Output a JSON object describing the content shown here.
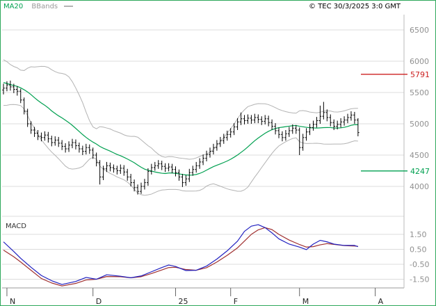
{
  "legend": {
    "ma20": "MA20",
    "bbands": "BBands"
  },
  "header": {
    "copyright": "© TEC 30/3/2025 3:0 GMT"
  },
  "colors": {
    "green": "#00a050",
    "band": "#b3b3b3",
    "grid": "#dcdcdc",
    "bar": "#000000",
    "macd_line": "#2020c0",
    "macd_signal": "#a03030",
    "axis_text": "#909090",
    "frame": "#2ea85a",
    "separator": "#999999",
    "month_text": "#222222"
  },
  "chart_data": {
    "type": "bar",
    "subtype": "ohlc-bars-with-bollinger-ma20-macd",
    "title": "",
    "price_axis": {
      "ticks": [
        6500,
        6000,
        5500,
        5000,
        4500,
        4000
      ],
      "range": [
        3700,
        6800
      ]
    },
    "levels": [
      {
        "label": "5791",
        "value": 5791,
        "color": "#cc2020"
      },
      {
        "label": "4247",
        "value": 4247,
        "color": "#00a050"
      }
    ],
    "x_axis": {
      "months": [
        {
          "label": "N",
          "i": 1
        },
        {
          "label": "D",
          "i": 26
        },
        {
          "label": "25",
          "i": 50
        },
        {
          "label": "F",
          "i": 66
        },
        {
          "label": "M",
          "i": 86
        },
        {
          "label": "A",
          "i": 108
        }
      ]
    },
    "warmup_closes": [
      5900,
      5950,
      5850,
      5780,
      5870,
      5800,
      5700,
      5760,
      5820,
      5700,
      5600,
      5520,
      5600,
      5680,
      5540,
      5460,
      5300,
      5350,
      5420
    ],
    "candles": [
      [
        5540,
        5640,
        5470,
        5570
      ],
      [
        5570,
        5680,
        5520,
        5620
      ],
      [
        5620,
        5690,
        5530,
        5590
      ],
      [
        5590,
        5640,
        5490,
        5550
      ],
      [
        5550,
        5600,
        5450,
        5520
      ],
      [
        5520,
        5560,
        5330,
        5380
      ],
      [
        5380,
        5420,
        5150,
        5200
      ],
      [
        5200,
        5240,
        4950,
        5000
      ],
      [
        5000,
        5040,
        4840,
        4900
      ],
      [
        4900,
        4950,
        4790,
        4850
      ],
      [
        4850,
        4900,
        4740,
        4800
      ],
      [
        4800,
        4860,
        4720,
        4780
      ],
      [
        4780,
        4880,
        4730,
        4820
      ],
      [
        4820,
        4870,
        4700,
        4760
      ],
      [
        4760,
        4810,
        4640,
        4700
      ],
      [
        4700,
        4800,
        4650,
        4740
      ],
      [
        4740,
        4790,
        4630,
        4690
      ],
      [
        4690,
        4740,
        4580,
        4640
      ],
      [
        4640,
        4690,
        4540,
        4600
      ],
      [
        4600,
        4720,
        4550,
        4660
      ],
      [
        4660,
        4760,
        4610,
        4700
      ],
      [
        4700,
        4750,
        4590,
        4650
      ],
      [
        4650,
        4700,
        4540,
        4600
      ],
      [
        4600,
        4650,
        4500,
        4560
      ],
      [
        4560,
        4680,
        4510,
        4620
      ],
      [
        4620,
        4670,
        4520,
        4580
      ],
      [
        4580,
        4620,
        4440,
        4500
      ],
      [
        4500,
        4540,
        4320,
        4380
      ],
      [
        4380,
        4420,
        4030,
        4150
      ],
      [
        4150,
        4330,
        4100,
        4280
      ],
      [
        4280,
        4390,
        4230,
        4330
      ],
      [
        4330,
        4380,
        4240,
        4300
      ],
      [
        4300,
        4350,
        4220,
        4280
      ],
      [
        4280,
        4330,
        4190,
        4250
      ],
      [
        4250,
        4350,
        4200,
        4290
      ],
      [
        4290,
        4340,
        4170,
        4230
      ],
      [
        4230,
        4280,
        4090,
        4150
      ],
      [
        4150,
        4200,
        4000,
        4060
      ],
      [
        4060,
        4110,
        3920,
        3980
      ],
      [
        3980,
        4030,
        3870,
        3920
      ],
      [
        3920,
        4060,
        3880,
        4000
      ],
      [
        4000,
        4120,
        3950,
        4060
      ],
      [
        4060,
        4290,
        4010,
        4240
      ],
      [
        4240,
        4360,
        4190,
        4300
      ],
      [
        4300,
        4390,
        4250,
        4330
      ],
      [
        4330,
        4420,
        4280,
        4360
      ],
      [
        4360,
        4410,
        4260,
        4320
      ],
      [
        4320,
        4370,
        4230,
        4290
      ],
      [
        4290,
        4370,
        4240,
        4310
      ],
      [
        4310,
        4360,
        4210,
        4270
      ],
      [
        4270,
        4320,
        4160,
        4220
      ],
      [
        4220,
        4270,
        4090,
        4150
      ],
      [
        4150,
        4200,
        3990,
        4060
      ],
      [
        4060,
        4180,
        4010,
        4120
      ],
      [
        4120,
        4280,
        4070,
        4220
      ],
      [
        4220,
        4330,
        4170,
        4270
      ],
      [
        4270,
        4390,
        4220,
        4330
      ],
      [
        4330,
        4450,
        4280,
        4390
      ],
      [
        4390,
        4510,
        4340,
        4450
      ],
      [
        4450,
        4570,
        4400,
        4510
      ],
      [
        4510,
        4620,
        4460,
        4560
      ],
      [
        4560,
        4680,
        4510,
        4620
      ],
      [
        4620,
        4740,
        4570,
        4680
      ],
      [
        4680,
        4790,
        4630,
        4730
      ],
      [
        4730,
        4840,
        4680,
        4780
      ],
      [
        4780,
        4890,
        4730,
        4830
      ],
      [
        4830,
        4930,
        4780,
        4870
      ],
      [
        4870,
        5010,
        4820,
        4950
      ],
      [
        4950,
        5090,
        4900,
        5030
      ],
      [
        5030,
        5180,
        4980,
        5080
      ],
      [
        5080,
        5140,
        4990,
        5050
      ],
      [
        5050,
        5150,
        5000,
        5090
      ],
      [
        5090,
        5140,
        5000,
        5060
      ],
      [
        5060,
        5160,
        5010,
        5100
      ],
      [
        5100,
        5150,
        5010,
        5070
      ],
      [
        5070,
        5120,
        4980,
        5040
      ],
      [
        5040,
        5140,
        4990,
        5080
      ],
      [
        5080,
        5130,
        4960,
        5020
      ],
      [
        5020,
        5070,
        4900,
        4960
      ],
      [
        4960,
        5010,
        4830,
        4890
      ],
      [
        4890,
        4940,
        4770,
        4830
      ],
      [
        4830,
        4880,
        4720,
        4780
      ],
      [
        4780,
        4900,
        4730,
        4840
      ],
      [
        4840,
        4950,
        4790,
        4890
      ],
      [
        4890,
        4990,
        4840,
        4930
      ],
      [
        4930,
        4980,
        4840,
        4900
      ],
      [
        4900,
        4940,
        4500,
        4620
      ],
      [
        4620,
        4840,
        4570,
        4780
      ],
      [
        4780,
        4930,
        4730,
        4870
      ],
      [
        4870,
        5000,
        4820,
        4940
      ],
      [
        4940,
        5050,
        4890,
        4990
      ],
      [
        4990,
        5110,
        4940,
        5050
      ],
      [
        5050,
        5290,
        5000,
        5120
      ],
      [
        5120,
        5350,
        5070,
        5180
      ],
      [
        5180,
        5230,
        5040,
        5100
      ],
      [
        5100,
        5150,
        4960,
        5020
      ],
      [
        5020,
        5070,
        4900,
        4960
      ],
      [
        4960,
        5050,
        4910,
        4990
      ],
      [
        4990,
        5090,
        4940,
        5030
      ],
      [
        5030,
        5120,
        4970,
        5060
      ],
      [
        5060,
        5160,
        5010,
        5100
      ],
      [
        5100,
        5200,
        5050,
        5140
      ],
      [
        5140,
        5190,
        5000,
        5060
      ],
      [
        5060,
        5090,
        4800,
        4860
      ]
    ],
    "overlays": {
      "ma_window": 20,
      "bollinger_k": 2
    },
    "macd": {
      "label": "MACD",
      "ticks": [
        "1.50",
        "0.50",
        "-0.50",
        "-1.50"
      ],
      "line_keypoints": [
        [
          0,
          1.0
        ],
        [
          3,
          0.35
        ],
        [
          5,
          -0.1
        ],
        [
          8,
          -0.7
        ],
        [
          11,
          -1.25
        ],
        [
          14,
          -1.6
        ],
        [
          17,
          -1.85
        ],
        [
          21,
          -1.65
        ],
        [
          24,
          -1.38
        ],
        [
          27,
          -1.5
        ],
        [
          30,
          -1.2
        ],
        [
          34,
          -1.3
        ],
        [
          37,
          -1.4
        ],
        [
          40,
          -1.28
        ],
        [
          43,
          -1.0
        ],
        [
          46,
          -0.72
        ],
        [
          48,
          -0.55
        ],
        [
          50,
          -0.65
        ],
        [
          53,
          -0.92
        ],
        [
          56,
          -0.9
        ],
        [
          59,
          -0.62
        ],
        [
          62,
          -0.15
        ],
        [
          65,
          0.4
        ],
        [
          68,
          1.05
        ],
        [
          70,
          1.7
        ],
        [
          72,
          2.05
        ],
        [
          74,
          2.15
        ],
        [
          76,
          1.95
        ],
        [
          78,
          1.6
        ],
        [
          80,
          1.2
        ],
        [
          83,
          0.85
        ],
        [
          86,
          0.65
        ],
        [
          88,
          0.48
        ],
        [
          90,
          0.85
        ],
        [
          92,
          1.1
        ],
        [
          94,
          1.0
        ],
        [
          96,
          0.85
        ],
        [
          99,
          0.76
        ],
        [
          102,
          0.76
        ],
        [
          103,
          0.68
        ]
      ],
      "signal_keypoints": [
        [
          0,
          0.45
        ],
        [
          3,
          0.0
        ],
        [
          5,
          -0.35
        ],
        [
          8,
          -0.9
        ],
        [
          11,
          -1.45
        ],
        [
          14,
          -1.75
        ],
        [
          17,
          -1.95
        ],
        [
          21,
          -1.78
        ],
        [
          24,
          -1.55
        ],
        [
          27,
          -1.5
        ],
        [
          30,
          -1.32
        ],
        [
          34,
          -1.33
        ],
        [
          37,
          -1.4
        ],
        [
          40,
          -1.33
        ],
        [
          43,
          -1.12
        ],
        [
          46,
          -0.88
        ],
        [
          48,
          -0.72
        ],
        [
          50,
          -0.7
        ],
        [
          53,
          -0.85
        ],
        [
          56,
          -0.9
        ],
        [
          59,
          -0.73
        ],
        [
          62,
          -0.35
        ],
        [
          65,
          0.1
        ],
        [
          68,
          0.6
        ],
        [
          70,
          1.05
        ],
        [
          72,
          1.5
        ],
        [
          74,
          1.8
        ],
        [
          76,
          1.95
        ],
        [
          78,
          1.82
        ],
        [
          80,
          1.5
        ],
        [
          83,
          1.12
        ],
        [
          86,
          0.82
        ],
        [
          88,
          0.65
        ],
        [
          90,
          0.68
        ],
        [
          92,
          0.8
        ],
        [
          94,
          0.88
        ],
        [
          96,
          0.83
        ],
        [
          99,
          0.75
        ],
        [
          102,
          0.72
        ],
        [
          103,
          0.7
        ]
      ]
    }
  }
}
